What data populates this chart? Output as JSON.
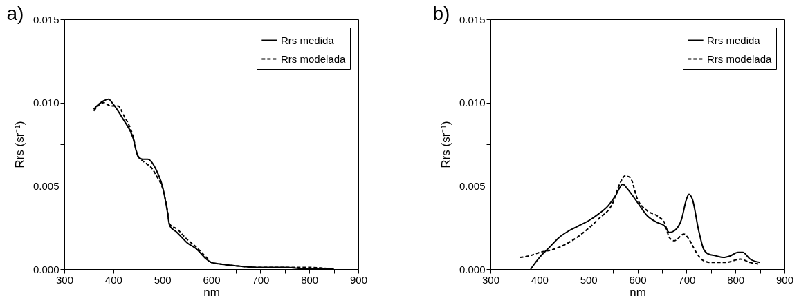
{
  "chart_data": [
    {
      "type": "line",
      "title": "a)",
      "xlabel": "nm",
      "ylabel": "Rrs (sr⁻¹)",
      "xlim": [
        300,
        900
      ],
      "ylim": [
        0,
        0.015
      ],
      "xticks": [
        300,
        {
          "value": 350,
          "label": null
        },
        400,
        {
          "value": 450,
          "label": null
        },
        500,
        {
          "value": 550,
          "label": null
        },
        600,
        {
          "value": 650,
          "label": null
        },
        700,
        {
          "value": 750,
          "label": null
        },
        800,
        {
          "value": 850,
          "label": null
        },
        900
      ],
      "yticks": [
        {
          "value": 0,
          "label": "0.000"
        },
        {
          "value": 0.0025,
          "label": null
        },
        {
          "value": 0.005,
          "label": "0.005"
        },
        {
          "value": 0.0075,
          "label": null
        },
        {
          "value": 0.01,
          "label": "0.010"
        },
        {
          "value": 0.0125,
          "label": null
        },
        {
          "value": 0.015,
          "label": "0.015"
        }
      ],
      "grid": false,
      "legend": "top right",
      "series": [
        {
          "name": "Rrs medida",
          "color": "#000000",
          "line_style": "solid",
          "x": [
            360,
            370,
            380,
            390,
            400,
            420,
            440,
            450,
            460,
            470,
            490,
            500,
            510,
            515,
            530,
            550,
            570,
            590,
            600,
            620,
            650,
            700,
            750,
            800,
            850
          ],
          "values": [
            0.0096,
            0.0099,
            0.0101,
            0.0102,
            0.0099,
            0.009,
            0.0079,
            0.0068,
            0.0066,
            0.0066,
            0.0058,
            0.005,
            0.0035,
            0.0026,
            0.0022,
            0.0016,
            0.0012,
            0.0006,
            0.0004,
            0.0003,
            0.0002,
            0.0001,
            0.0001,
            0,
            0
          ]
        },
        {
          "name": "Rrs modelada",
          "color": "#000000",
          "line_style": "dashed",
          "x": [
            360,
            380,
            395,
            410,
            420,
            440,
            450,
            460,
            480,
            490,
            500,
            510,
            515,
            530,
            550,
            570,
            590,
            600,
            620,
            650,
            700,
            800,
            850
          ],
          "values": [
            0.0095,
            0.01,
            0.0098,
            0.0098,
            0.0093,
            0.008,
            0.0068,
            0.0065,
            0.006,
            0.0055,
            0.0049,
            0.0036,
            0.0027,
            0.0024,
            0.0018,
            0.0013,
            0.0007,
            0.0004,
            0.0003,
            0.0002,
            0.0001,
            0.0001,
            0
          ]
        }
      ]
    },
    {
      "type": "line",
      "title": "b)",
      "xlabel": "nm",
      "ylabel": "Rrs (sr⁻¹)",
      "xlim": [
        300,
        900
      ],
      "ylim": [
        0,
        0.015
      ],
      "xticks": [
        300,
        {
          "value": 350,
          "label": null
        },
        400,
        {
          "value": 450,
          "label": null
        },
        500,
        {
          "value": 550,
          "label": null
        },
        600,
        {
          "value": 650,
          "label": null
        },
        700,
        {
          "value": 750,
          "label": null
        },
        800,
        {
          "value": 850,
          "label": null
        },
        900
      ],
      "yticks": [
        {
          "value": 0,
          "label": "0.000"
        },
        {
          "value": 0.0025,
          "label": null
        },
        {
          "value": 0.005,
          "label": "0.005"
        },
        {
          "value": 0.0075,
          "label": null
        },
        {
          "value": 0.01,
          "label": "0.010"
        },
        {
          "value": 0.0125,
          "label": null
        },
        {
          "value": 0.015,
          "label": "0.015"
        }
      ],
      "grid": false,
      "legend": "top right",
      "series": [
        {
          "name": "Rrs medida",
          "color": "#000000",
          "line_style": "solid",
          "x": [
            382,
            400,
            420,
            440,
            460,
            480,
            500,
            520,
            540,
            555,
            570,
            580,
            600,
            620,
            640,
            655,
            665,
            675,
            690,
            700,
            705,
            712,
            725,
            735,
            745,
            760,
            775,
            790,
            805,
            815,
            830,
            850
          ],
          "values": [
            0,
            0.0007,
            0.0013,
            0.0019,
            0.0023,
            0.0026,
            0.0029,
            0.0033,
            0.0038,
            0.0044,
            0.0051,
            0.0048,
            0.004,
            0.0032,
            0.0028,
            0.0026,
            0.0022,
            0.0023,
            0.003,
            0.0042,
            0.0045,
            0.0042,
            0.0023,
            0.0012,
            0.0009,
            0.0008,
            0.0007,
            0.0008,
            0.001,
            0.001,
            0.0006,
            0.0004
          ]
        },
        {
          "name": "Rrs modelada",
          "color": "#000000",
          "line_style": "dashed",
          "x": [
            360,
            380,
            400,
            430,
            460,
            490,
            520,
            550,
            565,
            575,
            585,
            600,
            620,
            640,
            655,
            665,
            675,
            695,
            705,
            720,
            735,
            750,
            780,
            810,
            830,
            850
          ],
          "values": [
            0.0007,
            0.0008,
            0.001,
            0.0012,
            0.0016,
            0.0022,
            0.003,
            0.004,
            0.0052,
            0.0056,
            0.0055,
            0.0042,
            0.0035,
            0.0032,
            0.0028,
            0.0019,
            0.0017,
            0.0021,
            0.0018,
            0.001,
            0.0005,
            0.0004,
            0.0004,
            0.0006,
            0.0004,
            0.0003
          ]
        }
      ]
    }
  ]
}
